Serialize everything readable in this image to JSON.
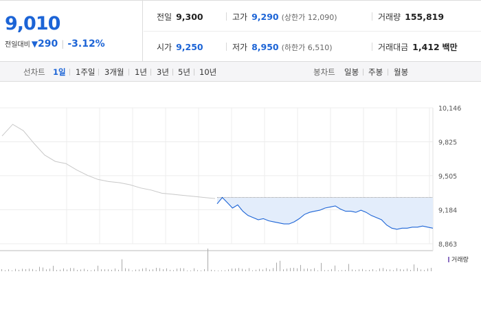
{
  "summary": {
    "price": "9,010",
    "change_label": "전일대비",
    "change_icon": "down-triangle-icon",
    "change_arrow": "▼",
    "change_value": "290",
    "change_pct": "-3.12%",
    "prev_close_label": "전일",
    "prev_close": "9,300",
    "open_label": "시가",
    "open": "9,250",
    "high_label": "고가",
    "high": "9,290",
    "upper_limit": "(상한가 12,090)",
    "low_label": "저가",
    "low": "8,950",
    "lower_limit": "(하한가 6,510)",
    "volume_label": "거래량",
    "volume": "155,819",
    "amount_label": "거래대금",
    "amount": "1,412",
    "amount_unit": "백만"
  },
  "toolbar": {
    "line_label": "선차트",
    "line_periods": [
      "1일",
      "1주일",
      "3개월",
      "1년",
      "3년",
      "5년",
      "10년"
    ],
    "selected_period": "1일",
    "candle_label": "봉차트",
    "candle_periods": [
      "일봉",
      "주봉",
      "월봉"
    ]
  },
  "colors": {
    "accent": "#1c64d6",
    "prev_line": "#c8c8c8",
    "fill": "#e3edfb",
    "volume": "#a9a9a9"
  },
  "chart_data": {
    "type": "line",
    "yticks": [
      "10,146",
      "9,825",
      "9,505",
      "9,184",
      "8,863"
    ],
    "ytick_values": [
      10146,
      9825,
      9505,
      9184,
      8863
    ],
    "ylim": [
      8863,
      10146
    ],
    "reference_value": 9300,
    "volume_legend": "거래량",
    "series": [
      {
        "values": [
          9880,
          9990,
          9930,
          9810,
          9700,
          9640,
          9620,
          9560,
          9510,
          9470,
          9450,
          9440,
          9420,
          9390,
          9370,
          9340,
          9330,
          9320,
          9310,
          9300,
          9290
        ]
      },
      {
        "values": [
          9240,
          9300,
          9250,
          9200,
          9230,
          9170,
          9130,
          9110,
          9090,
          9100,
          9080,
          9070,
          9060,
          9050,
          9050,
          9070,
          9100,
          9140,
          9160,
          9170,
          9180,
          9200,
          9210,
          9220,
          9190,
          9170,
          9170,
          9160,
          9180,
          9160,
          9130,
          9110,
          9090,
          9040,
          9010,
          9000,
          9010,
          9010,
          9020,
          9020,
          9030,
          9020,
          9010
        ]
      }
    ]
  }
}
